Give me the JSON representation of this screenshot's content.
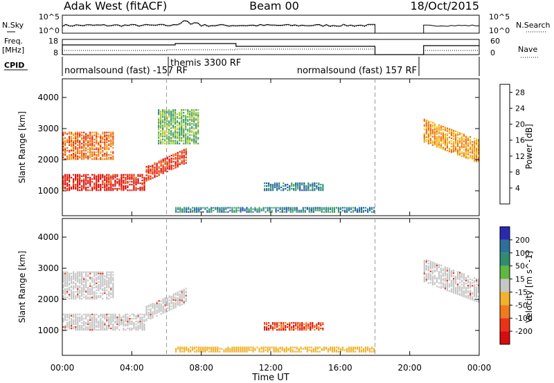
{
  "header": {
    "radar_title": "Adak West (fitACF)",
    "beam": "Beam 00",
    "date": "18/Oct/2015"
  },
  "top_panels": {
    "nsky_label": "N.Sky",
    "nsky_ticks": [
      "10^5",
      "10^0"
    ],
    "nsearch_label": "N.Search",
    "nsearch_ticks": [
      "10^5",
      "10^0"
    ],
    "freq_label": "Freq.",
    "freq_unit": "[MHz]",
    "freq_ticks": [
      "18",
      "8"
    ],
    "nave_label": "Nave",
    "nave_ticks": [
      "60",
      "0"
    ],
    "cpid_label": "CPID",
    "cpid_segments": [
      {
        "label": "normalsound (fast) -157 RF",
        "start_hour": 0,
        "end_hour": 6.5
      },
      {
        "label": "themis 3300 RF",
        "start_hour": 6.5,
        "end_hour": 10
      },
      {
        "label": "normalsound (fast) 157 RF",
        "start_hour": 10,
        "end_hour": 24
      }
    ]
  },
  "chart_data": [
    {
      "type": "heatmap",
      "title": "Power",
      "ylabel": "Slant Range [km]",
      "xlabel": "",
      "ylim": [
        200,
        4600
      ],
      "xlim_hours": [
        0,
        24
      ],
      "x_ticks": [
        "00:00",
        "04:00",
        "08:00",
        "12:00",
        "16:00",
        "20:00",
        "00:00"
      ],
      "y_ticks": [
        1000,
        2000,
        3000,
        4000
      ],
      "colorbar": {
        "label": "Power [dB]",
        "ticks": [
          4,
          8,
          12,
          16,
          20,
          24,
          28
        ],
        "range": [
          0,
          30
        ],
        "colors": [
          "#1515e6",
          "#2d52b8",
          "#2f8c8c",
          "#4fa860",
          "#9ccf3f",
          "#e8d21f",
          "#f2a21c",
          "#f06a18",
          "#e62a12",
          "#d80c0c"
        ]
      },
      "echo_regions": [
        {
          "desc": "ionospheric band",
          "start_hour": 0,
          "end_hour": 4.8,
          "range_km": [
            1000,
            1500
          ],
          "power_db": 27
        },
        {
          "desc": "rising band",
          "start_hour": 4.8,
          "end_hour": 7.2,
          "range_km": [
            1300,
            2400
          ],
          "power_db": 25
        },
        {
          "desc": "upper streaks",
          "start_hour": 0,
          "end_hour": 3.0,
          "range_km": [
            2000,
            2900
          ],
          "power_db": 22
        },
        {
          "desc": "late morning patch",
          "start_hour": 5.5,
          "end_hour": 7.8,
          "range_km": [
            2500,
            3600
          ],
          "power_db": 12
        },
        {
          "desc": "noon patch",
          "start_hour": 11.6,
          "end_hour": 15.0,
          "range_km": [
            1000,
            1250
          ],
          "power_db": 7
        },
        {
          "desc": "near range ground",
          "start_hour": 6.5,
          "end_hour": 18.0,
          "range_km": [
            300,
            450
          ],
          "power_db": 8
        },
        {
          "desc": "evening diagonal",
          "start_hour": 20.8,
          "end_hour": 24,
          "range_km": [
            1800,
            3300
          ],
          "power_db": 20
        }
      ]
    },
    {
      "type": "heatmap",
      "title": "Velocity",
      "ylabel": "Slant Range [km]",
      "xlabel": "Time UT",
      "ylim": [
        200,
        4600
      ],
      "xlim_hours": [
        0,
        24
      ],
      "x_ticks": [
        "00:00",
        "04:00",
        "08:00",
        "12:00",
        "16:00",
        "20:00",
        "00:00"
      ],
      "y_ticks": [
        1000,
        2000,
        3000,
        4000
      ],
      "colorbar": {
        "label": "Velocity [m s^-1]",
        "ticks": [
          "200",
          "100",
          "50",
          "15",
          "-15",
          "-50",
          "-100",
          "-200"
        ],
        "colors": [
          "#2a2ab0",
          "#2f6f9c",
          "#2f8c6f",
          "#5fb83f",
          "#c6c6c6",
          "#f2b22a",
          "#f07a1c",
          "#ea3216",
          "#d80c0c"
        ]
      },
      "echo_regions": [
        {
          "desc": "ground scatter band",
          "start_hour": 0,
          "end_hour": 4.8,
          "range_km": [
            1000,
            1500
          ],
          "velocity": 0
        },
        {
          "desc": "rising gray",
          "start_hour": 4.8,
          "end_hour": 7.2,
          "range_km": [
            1300,
            2400
          ],
          "velocity": 0
        },
        {
          "desc": "upper gray",
          "start_hour": 0,
          "end_hour": 3.0,
          "range_km": [
            2000,
            2900
          ],
          "velocity": 0
        },
        {
          "desc": "noon patch",
          "start_hour": 11.6,
          "end_hour": 15.0,
          "range_km": [
            1000,
            1250
          ],
          "velocity": -150
        },
        {
          "desc": "near range",
          "start_hour": 6.5,
          "end_hour": 18.0,
          "range_km": [
            300,
            450
          ],
          "velocity": -30
        },
        {
          "desc": "evening diagonal",
          "start_hour": 20.8,
          "end_hour": 24,
          "range_km": [
            1800,
            3300
          ],
          "velocity": 0
        }
      ]
    }
  ]
}
